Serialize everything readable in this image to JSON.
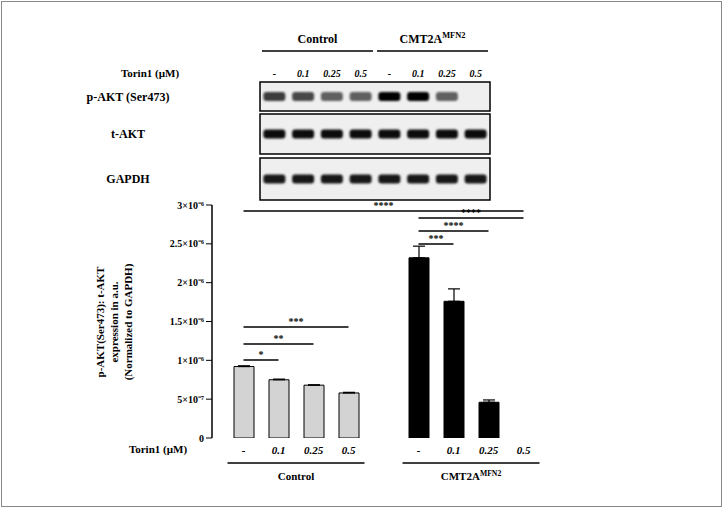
{
  "chart_data": {
    "type": "bar",
    "x_label": "Torin1 (µM)",
    "y_label": [
      "p-AKT(Ser473): t-AKT",
      "expression in a.u.",
      "(Normalized to GAPDH)"
    ],
    "ylim": [
      0,
      3e-06
    ],
    "yticks": [
      0,
      {
        "value": 5e-07,
        "label": "5×10⁻⁷"
      },
      {
        "value": 1e-06,
        "label": "1×10⁻⁶"
      },
      {
        "value": 1.5e-06,
        "label": "1.5×10⁻⁶"
      },
      {
        "value": 2e-06,
        "label": "2×10⁻⁶"
      },
      {
        "value": 2.5e-06,
        "label": "2.5×10⁻⁶"
      },
      {
        "value": 3e-06,
        "label": "3×10⁻⁶"
      }
    ],
    "series": [
      {
        "name": "Control",
        "color": "#d3d3d3",
        "categories": [
          "-",
          "0.1",
          "0.25",
          "0.5"
        ],
        "values": [
          9.2e-07,
          7.5e-07,
          6.8e-07,
          5.8e-07
        ],
        "errors": [
          1e-08,
          8e-09,
          5e-09,
          8e-09
        ]
      },
      {
        "name": "CMT2A",
        "name_superscript": "MFN2",
        "color": "#000000",
        "categories": [
          "-",
          "0.1",
          "0.25",
          "0.5"
        ],
        "values": [
          2.32e-06,
          1.76e-06,
          4.6e-07,
          0
        ],
        "errors": [
          1.5e-07,
          1.6e-07,
          3e-08,
          0
        ]
      }
    ],
    "significance": [
      {
        "label": "****",
        "from": [
          "Control",
          "-"
        ],
        "to": [
          "CMT2A",
          "0.5"
        ]
      },
      {
        "label": "****",
        "from": [
          "CMT2A",
          "-"
        ],
        "to": [
          "CMT2A",
          "0.5"
        ]
      },
      {
        "label": "****",
        "from": [
          "CMT2A",
          "-"
        ],
        "to": [
          "CMT2A",
          "0.25"
        ]
      },
      {
        "label": "***",
        "from": [
          "CMT2A",
          "-"
        ],
        "to": [
          "CMT2A",
          "0.1"
        ]
      },
      {
        "label": "***",
        "from": [
          "Control",
          "-"
        ],
        "to": [
          "Control",
          "0.5"
        ]
      },
      {
        "label": "**",
        "from": [
          "Control",
          "-"
        ],
        "to": [
          "Control",
          "0.25"
        ]
      },
      {
        "label": "*",
        "from": [
          "Control",
          "-"
        ],
        "to": [
          "Control",
          "0.1"
        ]
      }
    ],
    "blot": {
      "rows": [
        {
          "name": "p-AKT (Ser473)",
          "intensity": [
            0.75,
            0.7,
            0.6,
            0.6,
            1,
            1,
            0.6,
            0
          ]
        },
        {
          "name": "t-AKT",
          "intensity": [
            0.95,
            0.95,
            0.95,
            0.95,
            0.95,
            0.95,
            0.95,
            0.95
          ]
        },
        {
          "name": "GAPDH",
          "intensity": [
            0.9,
            0.9,
            0.9,
            0.9,
            0.9,
            0.9,
            0.9,
            0.9
          ]
        }
      ]
    }
  }
}
